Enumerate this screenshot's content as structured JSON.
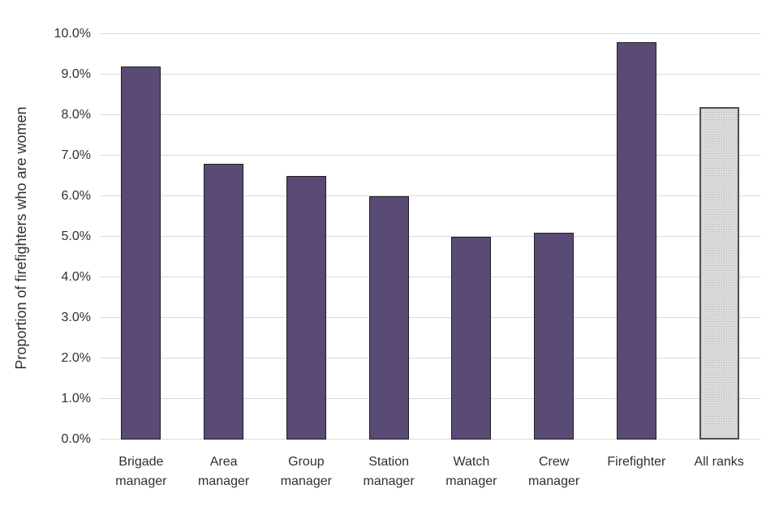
{
  "chart_data": {
    "type": "bar",
    "title": "",
    "xlabel": "",
    "ylabel": "Proportion of firefighters who are women",
    "ylim": [
      0,
      10
    ],
    "ytick_step": 1,
    "yticks": [
      "0.0%",
      "1.0%",
      "2.0%",
      "3.0%",
      "4.0%",
      "5.0%",
      "6.0%",
      "7.0%",
      "8.0%",
      "9.0%",
      "10.0%"
    ],
    "categories": [
      "Brigade\nmanager",
      "Area\nmanager",
      "Group\nmanager",
      "Station\nmanager",
      "Watch\nmanager",
      "Crew\nmanager",
      "Firefighter",
      "All ranks"
    ],
    "values": [
      9.2,
      6.8,
      6.5,
      6.0,
      5.0,
      5.1,
      9.8,
      8.2
    ],
    "value_unit": "%",
    "grid": true,
    "legend": "none",
    "bar_fills": [
      "#5a4a76",
      "#5a4a76",
      "#5a4a76",
      "#5a4a76",
      "#5a4a76",
      "#5a4a76",
      "#5a4a76",
      "#dcdcdc"
    ],
    "bar_borders": [
      "#1f1f1f",
      "#1f1f1f",
      "#1f1f1f",
      "#1f1f1f",
      "#1f1f1f",
      "#1f1f1f",
      "#1f1f1f",
      "#4d4d4d"
    ],
    "bar_patterns": [
      "solid",
      "solid",
      "solid",
      "solid",
      "solid",
      "solid",
      "solid",
      "stipple"
    ],
    "colors": {
      "bar_primary": "#5a4a76",
      "bar_all_ranks": "#dcdcdc",
      "gridline": "#d9d9d9",
      "text": "#303030",
      "background": "#ffffff"
    }
  }
}
